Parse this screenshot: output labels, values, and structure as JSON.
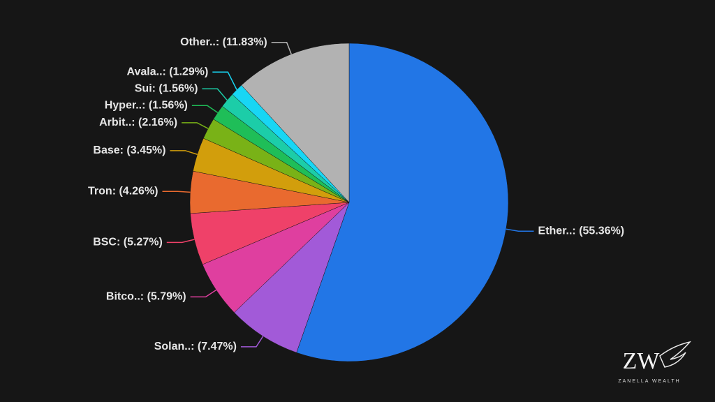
{
  "chart_data": {
    "type": "pie",
    "values": [
      55.36,
      7.47,
      5.79,
      5.27,
      4.26,
      3.45,
      2.16,
      1.56,
      1.56,
      1.29,
      11.83
    ],
    "value_labels": [
      "Ether..: (55.36%)",
      "Solan..: (7.47%)",
      "Bitco..: (5.79%)",
      "BSC: (5.27%)",
      "Tron: (4.26%)",
      "Base: (3.45%)",
      "Arbit..: (2.16%)",
      "Hyper..: (1.56%)",
      "Sui: (1.56%)",
      "Avala..: (1.29%)",
      "Other..: (11.83%)"
    ],
    "colors": [
      "#2276e6",
      "#a25ad8",
      "#df3f9f",
      "#ef4169",
      "#e96a2f",
      "#d29e0c",
      "#79b217",
      "#1fbe58",
      "#1ccda8",
      "#18d6f4",
      "#b2b2b2"
    ]
  },
  "watermark": {
    "logo": "ZW",
    "text": "ZANELLA WEALTH"
  }
}
